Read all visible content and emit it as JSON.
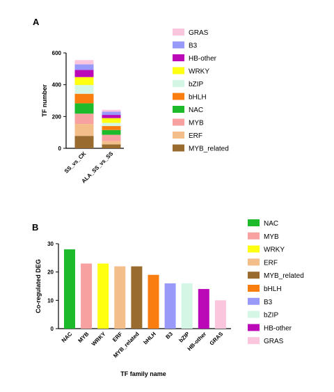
{
  "panel_a_label": "A",
  "panel_b_label": "B",
  "chart_data": [
    {
      "type": "bar",
      "stacked": true,
      "title": "",
      "xlabel": "",
      "ylabel": "TF number",
      "ylim": [
        0,
        600
      ],
      "yticks": [
        0,
        200,
        400,
        600
      ],
      "categories": [
        "SS_vs_CK",
        "ALA_SS_vs_SS"
      ],
      "legend_position": "right",
      "grid": false,
      "series": [
        {
          "name": "MYB_related",
          "color": "#9A6B2F",
          "values": [
            78,
            25
          ]
        },
        {
          "name": "ERF",
          "color": "#F4BE8B",
          "values": [
            75,
            20
          ]
        },
        {
          "name": "MYB",
          "color": "#F7A1A1",
          "values": [
            65,
            40
          ]
        },
        {
          "name": "NAC",
          "color": "#1DBA2C",
          "values": [
            65,
            30
          ]
        },
        {
          "name": "bHLH",
          "color": "#FA7E0F",
          "values": [
            60,
            25
          ]
        },
        {
          "name": "bZIP",
          "color": "#D4F6E5",
          "values": [
            55,
            20
          ]
        },
        {
          "name": "WRKY",
          "color": "#FFFF11",
          "values": [
            50,
            30
          ]
        },
        {
          "name": "HB-other",
          "color": "#BB09B8",
          "values": [
            45,
            20
          ]
        },
        {
          "name": "B3",
          "color": "#9999FA",
          "values": [
            35,
            20
          ]
        },
        {
          "name": "GRAS",
          "color": "#FBC5DE",
          "values": [
            27,
            12
          ]
        }
      ],
      "legend_order": [
        "GRAS",
        "B3",
        "HB-other",
        "WRKY",
        "bZIP",
        "bHLH",
        "NAC",
        "MYB",
        "ERF",
        "MYB_related"
      ]
    },
    {
      "type": "bar",
      "title": "",
      "xlabel": "TF family name",
      "ylabel": "Co-regulated DEG",
      "ylim": [
        0,
        30
      ],
      "yticks": [
        0,
        10,
        20,
        30
      ],
      "legend_position": "right",
      "grid": false,
      "categories": [
        "NAC",
        "MYB",
        "WRKY",
        "ERF",
        "MYB_related",
        "bHLH",
        "B3",
        "bZIP",
        "HB-other",
        "GRAS"
      ],
      "values": [
        28,
        23,
        23,
        22,
        22,
        19,
        16,
        16,
        14,
        10
      ],
      "colors": [
        "#1DBA2C",
        "#F7A1A1",
        "#FFFF11",
        "#F4BE8B",
        "#9A6B2F",
        "#FA7E0F",
        "#9999FA",
        "#D4F6E5",
        "#BB09B8",
        "#FBC5DE"
      ]
    }
  ]
}
